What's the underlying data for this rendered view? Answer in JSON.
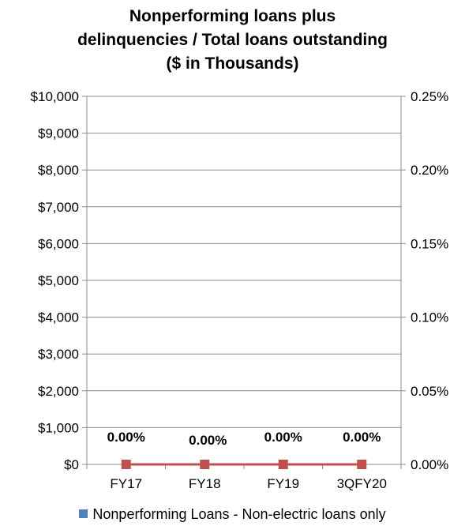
{
  "chart_data": {
    "type": "line",
    "title_lines": [
      "Nonperforming loans plus",
      "delinquencies / Total loans outstanding",
      "($ in Thousands)"
    ],
    "categories": [
      "FY17",
      "FY18",
      "FY19",
      "3QFY20"
    ],
    "series": [
      {
        "name": "Nonperforming Loans - Non-electric loans only",
        "type": "bar",
        "axis": "left",
        "values": [
          0,
          0,
          0,
          0
        ],
        "color": "#4f81bd",
        "show_in_legend": true
      },
      {
        "type": "line",
        "axis": "right",
        "values": [
          0,
          0,
          0,
          0
        ],
        "labels": [
          "0.00%",
          "0.00%",
          "0.00%",
          "0.00%"
        ],
        "color": "#c0504d",
        "show_in_legend": false
      }
    ],
    "y_left": {
      "ylim": [
        0,
        10000
      ],
      "ticks": [
        0,
        1000,
        2000,
        3000,
        4000,
        5000,
        6000,
        7000,
        8000,
        9000,
        10000
      ],
      "tick_labels": [
        "$0",
        "$1,000",
        "$2,000",
        "$3,000",
        "$4,000",
        "$5,000",
        "$6,000",
        "$7,000",
        "$8,000",
        "$9,000",
        "$10,000"
      ]
    },
    "y_right": {
      "ylim": [
        0,
        0.25
      ],
      "ticks": [
        0,
        0.05,
        0.1,
        0.15,
        0.2,
        0.25
      ],
      "tick_labels": [
        "0.00%",
        "0.05%",
        "0.10%",
        "0.15%",
        "0.20%",
        "0.25%"
      ]
    },
    "grid": true,
    "legend_position": "bottom"
  }
}
